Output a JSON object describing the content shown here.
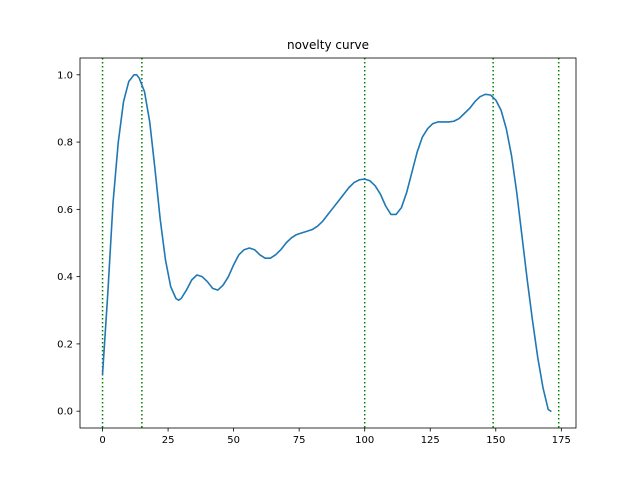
{
  "chart_data": {
    "type": "line",
    "title": "novelty curve",
    "xlabel": "",
    "ylabel": "",
    "xlim": [
      -8.6,
      180.6
    ],
    "ylim": [
      -0.05,
      1.05
    ],
    "xticks": [
      0,
      25,
      50,
      75,
      100,
      125,
      150,
      175
    ],
    "yticks": [
      0.0,
      0.2,
      0.4,
      0.6,
      0.8,
      1.0
    ],
    "xtick_labels": [
      "0",
      "25",
      "50",
      "75",
      "100",
      "125",
      "150",
      "175"
    ],
    "ytick_labels": [
      "0.0",
      "0.2",
      "0.4",
      "0.6",
      "0.8",
      "1.0"
    ],
    "grid": false,
    "series": [
      {
        "color": "#1f77b4",
        "x": [
          0,
          2,
          4,
          6,
          8,
          10,
          12,
          13,
          14,
          16,
          18,
          20,
          22,
          24,
          26,
          28,
          29,
          30,
          32,
          34,
          36,
          38,
          40,
          42,
          44,
          46,
          48,
          50,
          52,
          54,
          56,
          58,
          60,
          62,
          64,
          66,
          68,
          70,
          72,
          74,
          76,
          78,
          80,
          82,
          84,
          86,
          88,
          90,
          92,
          94,
          96,
          98,
          100,
          102,
          104,
          106,
          108,
          110,
          112,
          114,
          116,
          118,
          120,
          122,
          124,
          126,
          128,
          130,
          132,
          134,
          136,
          138,
          140,
          142,
          144,
          146,
          148,
          150,
          152,
          154,
          156,
          158,
          160,
          162,
          164,
          166,
          168,
          170,
          171
        ],
        "y": [
          0.11,
          0.35,
          0.62,
          0.8,
          0.92,
          0.98,
          1.0,
          1.0,
          0.99,
          0.95,
          0.86,
          0.72,
          0.57,
          0.45,
          0.37,
          0.335,
          0.33,
          0.335,
          0.36,
          0.39,
          0.405,
          0.4,
          0.385,
          0.365,
          0.36,
          0.375,
          0.4,
          0.435,
          0.465,
          0.48,
          0.485,
          0.48,
          0.465,
          0.455,
          0.455,
          0.465,
          0.48,
          0.5,
          0.515,
          0.525,
          0.53,
          0.535,
          0.54,
          0.55,
          0.565,
          0.585,
          0.605,
          0.625,
          0.645,
          0.665,
          0.68,
          0.688,
          0.69,
          0.685,
          0.67,
          0.645,
          0.61,
          0.585,
          0.585,
          0.605,
          0.65,
          0.71,
          0.77,
          0.815,
          0.84,
          0.855,
          0.86,
          0.86,
          0.86,
          0.862,
          0.87,
          0.885,
          0.9,
          0.92,
          0.935,
          0.942,
          0.94,
          0.925,
          0.895,
          0.84,
          0.76,
          0.65,
          0.52,
          0.39,
          0.27,
          0.16,
          0.07,
          0.005,
          0.0
        ]
      }
    ],
    "vlines": {
      "x": [
        0,
        15,
        100,
        149,
        174
      ],
      "color": "#008000",
      "style": "dotted"
    }
  }
}
